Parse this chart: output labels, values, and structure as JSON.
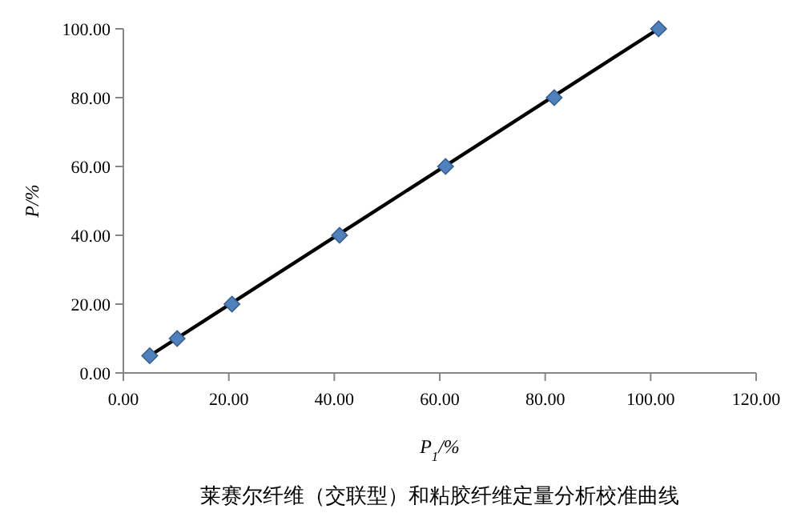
{
  "chart_data": {
    "type": "scatter",
    "title": "莱赛尔纤维（交联型）和粘胶纤维定量分析校准曲线",
    "xlabel": "P$_{1}$/%",
    "ylabel": "P/%",
    "xlim": [
      0,
      120
    ],
    "xticks": [
      {
        "value": 0,
        "label": "0.00"
      },
      {
        "value": 20,
        "label": "20.00"
      },
      {
        "value": 40,
        "label": "40.00"
      },
      {
        "value": 60,
        "label": "60.00"
      },
      {
        "value": 80,
        "label": "80.00"
      },
      {
        "value": 100,
        "label": "100.00"
      },
      {
        "value": 120,
        "label": "120.00"
      }
    ],
    "ylim": [
      0,
      100
    ],
    "yticks": [
      {
        "value": 0,
        "label": "0.00"
      },
      {
        "value": 20,
        "label": "20.00"
      },
      {
        "value": 40,
        "label": "40.00"
      },
      {
        "value": 60,
        "label": "60.00"
      },
      {
        "value": 80,
        "label": "80.00"
      },
      {
        "value": 100,
        "label": "100.00"
      }
    ],
    "grid": false,
    "series": [
      {
        "type": "line",
        "color": "#000000",
        "x": [
          5.0,
          101.5
        ],
        "values": [
          5,
          100
        ],
        "marker": "none",
        "line_style": "solid"
      },
      {
        "marker": "diamond",
        "color": "#4f81bd",
        "x": [
          5.0,
          10.2,
          20.6,
          41.0,
          61.1,
          81.7,
          101.5
        ],
        "values": [
          5,
          10,
          20,
          40,
          60,
          80,
          100
        ]
      }
    ]
  }
}
